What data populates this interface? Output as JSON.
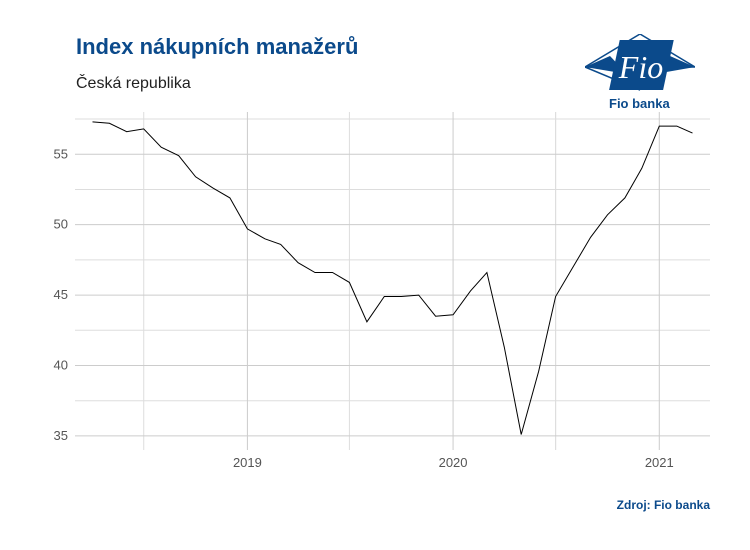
{
  "header": {
    "title": "Index nákupních manažerů",
    "subtitle": "Česká republika"
  },
  "logo": {
    "text": "Fio banka",
    "mark": "Fio",
    "color": "#0b4a8b"
  },
  "footer": {
    "source": "Zdroj: Fio banka"
  },
  "chart_data": {
    "type": "line",
    "title": "Index nákupních manažerů",
    "subtitle": "Česká republika",
    "xlabel": "",
    "ylabel": "",
    "x_ticks": [
      "2019",
      "2020",
      "2021"
    ],
    "y_ticks": [
      35,
      40,
      45,
      50,
      55
    ],
    "ylim": [
      34,
      58
    ],
    "grid": true,
    "legend": "none",
    "line_color": "#000000",
    "series": [
      {
        "x": [
          "2018-04",
          "2018-05",
          "2018-06",
          "2018-07",
          "2018-08",
          "2018-09",
          "2018-10",
          "2018-11",
          "2018-12",
          "2019-01",
          "2019-02",
          "2019-03",
          "2019-04",
          "2019-05",
          "2019-06",
          "2019-07",
          "2019-08",
          "2019-09",
          "2019-10",
          "2019-11",
          "2019-12",
          "2020-01",
          "2020-02",
          "2020-03",
          "2020-04",
          "2020-05",
          "2020-06",
          "2020-07",
          "2020-08",
          "2020-09",
          "2020-10",
          "2020-11",
          "2020-12",
          "2021-01",
          "2021-02",
          "2021-03"
        ],
        "values": [
          57.3,
          57.2,
          56.6,
          56.8,
          55.5,
          54.9,
          53.4,
          52.6,
          51.9,
          49.7,
          49.0,
          48.6,
          47.3,
          46.6,
          46.6,
          45.9,
          43.1,
          44.9,
          44.9,
          45.0,
          43.5,
          43.6,
          45.3,
          46.6,
          41.3,
          35.1,
          39.6,
          44.9,
          47.0,
          49.1,
          50.7,
          51.9,
          54.0,
          57.0,
          57.0,
          56.5
        ]
      }
    ]
  }
}
